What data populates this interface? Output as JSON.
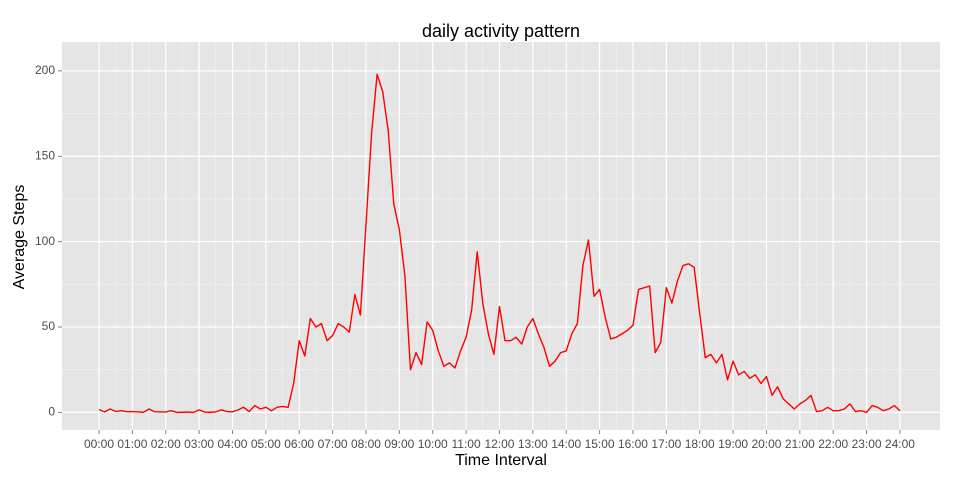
{
  "chart_data": {
    "type": "line",
    "title": "daily activity pattern",
    "x_label": "Time Interval",
    "y_label": "Average Steps",
    "series": [
      {
        "name": "Average Steps",
        "color": "#ff0000",
        "x": [
          0,
          10,
          20,
          30,
          40,
          50,
          60,
          70,
          80,
          90,
          100,
          110,
          120,
          130,
          140,
          150,
          160,
          170,
          180,
          190,
          200,
          210,
          220,
          230,
          240,
          250,
          260,
          270,
          280,
          290,
          300,
          310,
          320,
          330,
          340,
          350,
          360,
          370,
          380,
          390,
          400,
          410,
          420,
          430,
          440,
          450,
          460,
          470,
          480,
          490,
          500,
          510,
          520,
          530,
          540,
          550,
          560,
          570,
          580,
          590,
          600,
          610,
          620,
          630,
          640,
          650,
          660,
          670,
          680,
          690,
          700,
          710,
          720,
          730,
          740,
          750,
          760,
          770,
          780,
          790,
          800,
          810,
          820,
          830,
          840,
          850,
          860,
          870,
          880,
          890,
          900,
          910,
          920,
          930,
          940,
          950,
          960,
          970,
          980,
          990,
          1000,
          1010,
          1020,
          1030,
          1040,
          1050,
          1060,
          1070,
          1080,
          1090,
          1100,
          1110,
          1120,
          1130,
          1140,
          1150,
          1160,
          1170,
          1180,
          1190,
          1200,
          1210,
          1220,
          1230,
          1240,
          1250,
          1260,
          1270,
          1280,
          1290,
          1300,
          1310,
          1320,
          1330,
          1340,
          1350,
          1360,
          1370,
          1380,
          1390,
          1400,
          1410,
          1420,
          1430,
          1440
        ],
        "values": [
          1.7,
          0.3,
          2,
          0.6,
          1,
          0.4,
          0.5,
          0.3,
          0.1,
          2,
          0.4,
          0.3,
          0.2,
          1,
          0,
          0.1,
          0.2,
          0,
          1.5,
          0.2,
          0.1,
          0.3,
          1.5,
          0.5,
          0.3,
          1.5,
          3,
          0.5,
          4,
          2,
          3,
          1,
          3,
          3.5,
          3,
          17,
          42,
          33,
          55,
          50,
          52,
          42,
          45,
          52,
          50,
          47,
          69,
          57,
          110,
          163,
          198,
          188,
          165,
          122,
          107,
          80,
          25,
          35,
          28,
          53,
          48,
          36,
          27,
          29,
          26,
          36,
          44,
          60,
          94,
          64,
          46,
          34,
          62,
          42,
          42,
          44,
          40,
          50,
          55,
          46,
          38,
          27,
          30,
          35,
          36,
          46,
          52,
          86,
          101,
          68,
          72,
          56,
          43,
          44,
          46,
          48,
          51,
          72,
          73,
          74,
          35,
          41,
          73,
          64,
          77,
          86,
          87,
          85,
          58,
          32,
          34,
          29,
          34,
          19,
          30,
          22,
          24,
          20,
          22,
          17,
          21,
          10,
          15,
          8,
          5,
          2,
          5,
          7,
          10,
          0.5,
          1,
          3,
          1,
          1,
          2,
          5,
          0.5,
          1,
          0,
          4,
          3,
          1,
          2,
          4,
          1
        ]
      }
    ],
    "xlim": [
      -66.5,
      1512
    ],
    "ylim": [
      -10.3,
      216.9
    ],
    "xticks": [
      {
        "value": 0,
        "label": "00:00"
      },
      {
        "value": 60,
        "label": "01:00"
      },
      {
        "value": 120,
        "label": "02:00"
      },
      {
        "value": 180,
        "label": "03:00"
      },
      {
        "value": 240,
        "label": "04:00"
      },
      {
        "value": 300,
        "label": "05:00"
      },
      {
        "value": 360,
        "label": "06:00"
      },
      {
        "value": 420,
        "label": "07:00"
      },
      {
        "value": 480,
        "label": "08:00"
      },
      {
        "value": 540,
        "label": "09:00"
      },
      {
        "value": 600,
        "label": "10:00"
      },
      {
        "value": 660,
        "label": "11:00"
      },
      {
        "value": 720,
        "label": "12:00"
      },
      {
        "value": 780,
        "label": "13:00"
      },
      {
        "value": 840,
        "label": "14:00"
      },
      {
        "value": 900,
        "label": "15:00"
      },
      {
        "value": 960,
        "label": "16:00"
      },
      {
        "value": 1020,
        "label": "17:00"
      },
      {
        "value": 1080,
        "label": "18:00"
      },
      {
        "value": 1140,
        "label": "19:00"
      },
      {
        "value": 1200,
        "label": "20:00"
      },
      {
        "value": 1260,
        "label": "21:00"
      },
      {
        "value": 1320,
        "label": "22:00"
      },
      {
        "value": 1380,
        "label": "23:00"
      },
      {
        "value": 1440,
        "label": "24:00"
      }
    ],
    "yticks": [
      0,
      50,
      100,
      150,
      200
    ],
    "grid": true
  }
}
